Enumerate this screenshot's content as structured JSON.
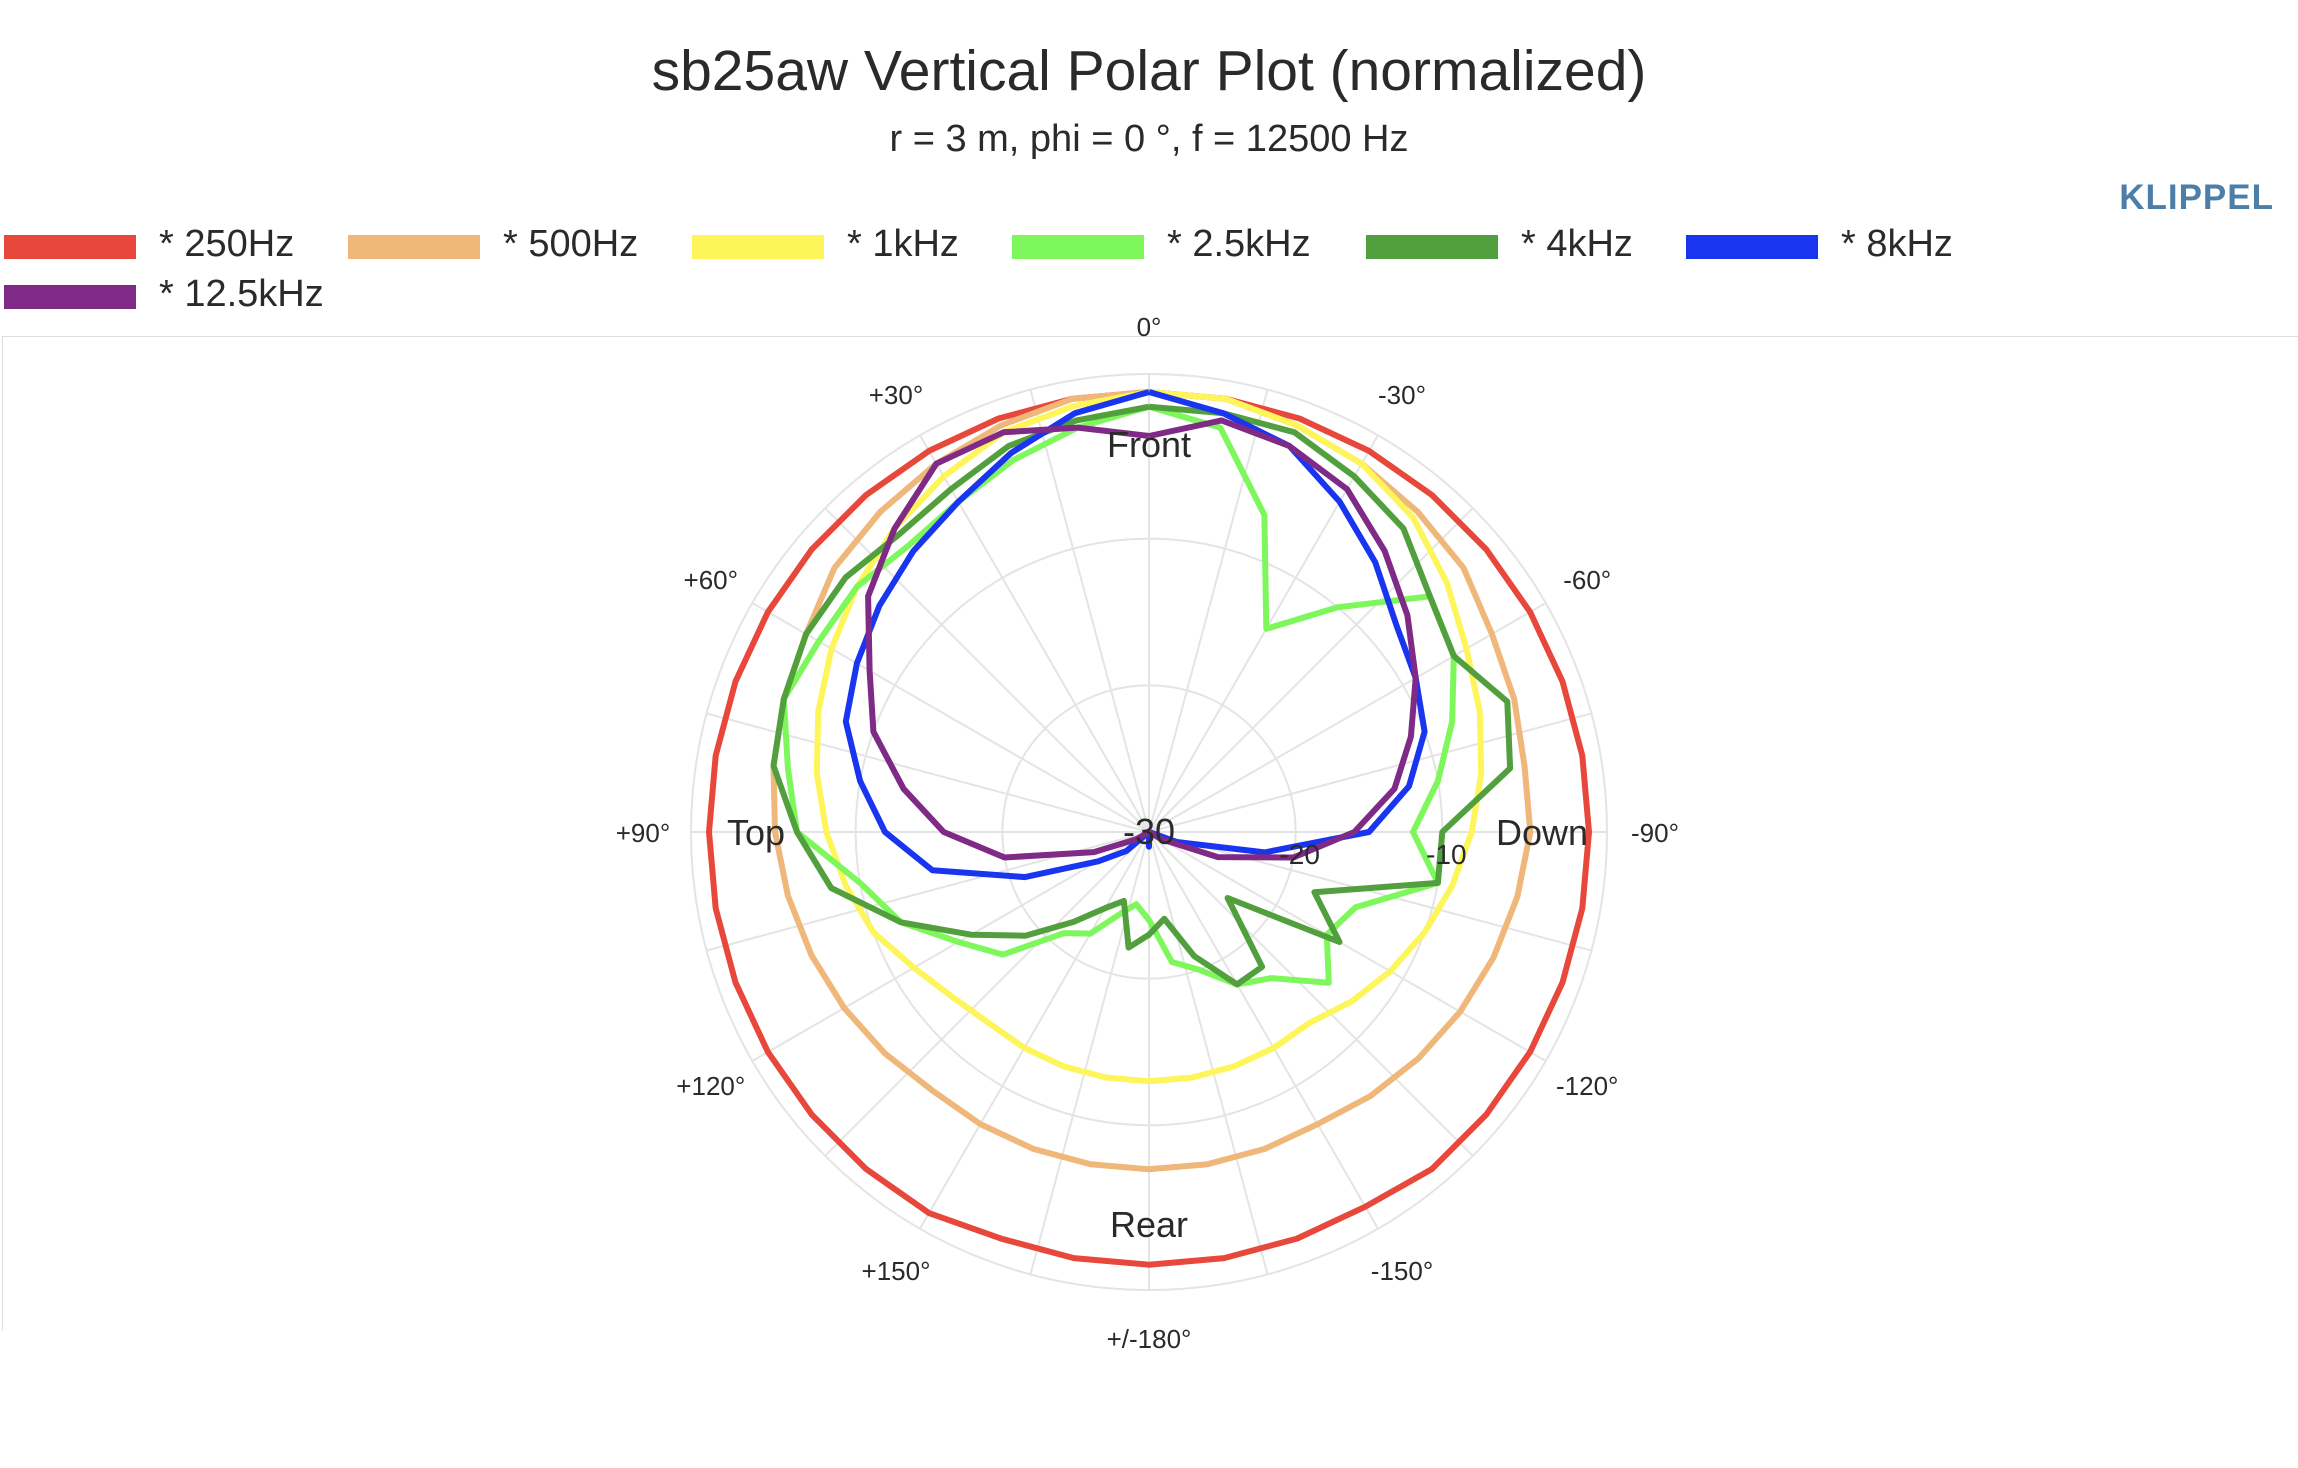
{
  "title": "sb25aw Vertical Polar Plot (normalized)",
  "subtitle": "r = 3 m, phi = 0 °, f = 12500 Hz",
  "brand": "KLIPPEL",
  "chart_data": {
    "type": "polar_line",
    "title": "sb25aw Vertical Polar Plot (normalized)",
    "subtitle": "r = 3 m, phi = 0 °, f = 12500 Hz",
    "radial_axis": {
      "range": [
        -30,
        0
      ],
      "tick_labels": [
        "-30",
        "-20",
        "-10"
      ]
    },
    "angular_tick_labels": [
      {
        "angle": 0,
        "label": "0°"
      },
      {
        "angle": 30,
        "label": "+30°"
      },
      {
        "angle": 60,
        "label": "+60°"
      },
      {
        "angle": 90,
        "label": "+90°"
      },
      {
        "angle": 120,
        "label": "+120°"
      },
      {
        "angle": 150,
        "label": "+150°"
      },
      {
        "angle": 180,
        "label": "+/-180°"
      },
      {
        "angle": -150,
        "label": "-150°"
      },
      {
        "angle": -120,
        "label": "-120°"
      },
      {
        "angle": -90,
        "label": "-90°"
      },
      {
        "angle": -60,
        "label": "-60°"
      },
      {
        "angle": -30,
        "label": "-30°"
      }
    ],
    "direction_labels": {
      "front": "Front",
      "rear": "Rear",
      "top": "Top",
      "down": "Down"
    },
    "angles_deg": [
      0,
      10,
      20,
      30,
      40,
      50,
      60,
      70,
      80,
      90,
      100,
      110,
      120,
      130,
      140,
      150,
      160,
      170,
      180,
      -170,
      -160,
      -150,
      -140,
      -130,
      -120,
      -110,
      -100,
      -90,
      -80,
      -70,
      -60,
      -50,
      -40,
      -30,
      -20,
      -10
    ],
    "grid": true,
    "legend_position": "top",
    "series": [
      {
        "name": "* 250Hz",
        "color": "#e8473b",
        "values": [
          0,
          0,
          0,
          0,
          0,
          0,
          0,
          0,
          0,
          0,
          0,
          0,
          0,
          0,
          0,
          0,
          -0.5,
          -0.5,
          -0.5,
          -0.5,
          -0.5,
          -0.5,
          0,
          0,
          0,
          0,
          0,
          0,
          0,
          0,
          0,
          0,
          0,
          0,
          0,
          0
        ]
      },
      {
        "name": "* 500Hz",
        "color": "#f0b77a",
        "values": [
          0,
          0,
          -0.5,
          -1,
          -1.5,
          -2,
          -3,
          -3.5,
          -4,
          -4.5,
          -5,
          -5.5,
          -6,
          -6.5,
          -7,
          -7,
          -7,
          -7,
          -7,
          -7,
          -7,
          -7,
          -6.5,
          -6,
          -5.5,
          -5,
          -4.5,
          -4,
          -4,
          -3.5,
          -3,
          -2,
          -1.5,
          -1,
          -0.5,
          0
        ]
      },
      {
        "name": "* 1kHz",
        "color": "#fdf55a",
        "values": [
          0,
          -0.5,
          -1,
          -2,
          -3,
          -4,
          -5,
          -6,
          -7,
          -8,
          -9,
          -10,
          -11.5,
          -12.5,
          -13,
          -13,
          -13,
          -13,
          -13,
          -13,
          -13,
          -13,
          -13,
          -12,
          -11,
          -10,
          -9,
          -8,
          -7,
          -6,
          -5,
          -3.5,
          -2,
          -1,
          -0.5,
          0
        ]
      },
      {
        "name": "* 2.5kHz",
        "color": "#7ef75c",
        "values": [
          -1,
          -2,
          -3,
          -4,
          -4.5,
          -4,
          -4,
          -3.5,
          -5,
          -6,
          -10,
          -12,
          -15,
          -17,
          -21,
          -22,
          -24,
          -25,
          -24,
          -21,
          -20,
          -18,
          -17,
          -14,
          -16,
          -15,
          -10,
          -12,
          -10,
          -8,
          -6,
          -5,
          -10,
          -14,
          -7,
          -2
        ]
      },
      {
        "name": "* 4kHz",
        "color": "#529f3e",
        "values": [
          -1,
          -1.5,
          -2,
          -3,
          -3.5,
          -3,
          -3,
          -3.5,
          -4,
          -6,
          -8,
          -12,
          -16,
          -19,
          -22,
          -24,
          -25,
          -22,
          -23,
          -24,
          -21,
          -18,
          -18,
          -23,
          -15,
          -18,
          -10,
          -10,
          -5,
          -4,
          -6,
          -5,
          -3,
          -2,
          -1,
          -1
        ]
      },
      {
        "name": "* 8kHz",
        "color": "#1a35f0",
        "values": [
          0,
          -1,
          -2.5,
          -4,
          -5,
          -6,
          -7,
          -8,
          -10,
          -12,
          -15,
          -21,
          -26,
          -28,
          -30,
          -30,
          -30,
          -30,
          -29,
          -30,
          -30,
          -30,
          -30,
          -30,
          -30,
          -28,
          -22,
          -15,
          -12,
          -10,
          -9,
          -8,
          -6,
          -4,
          -2,
          -1
        ]
      },
      {
        "name": "* 12.5kHz",
        "color": "#7e2a86",
        "values": [
          -3,
          -2,
          -1,
          -1,
          -3,
          -5,
          -8,
          -10,
          -13,
          -16,
          -20,
          -26,
          -29,
          -30,
          -30,
          -30,
          -30,
          -30,
          -30,
          -30,
          -30,
          -30,
          -30,
          -30,
          -29,
          -25,
          -20,
          -16,
          -13,
          -11,
          -9,
          -7,
          -5,
          -3,
          -2,
          -1.5
        ]
      }
    ]
  }
}
